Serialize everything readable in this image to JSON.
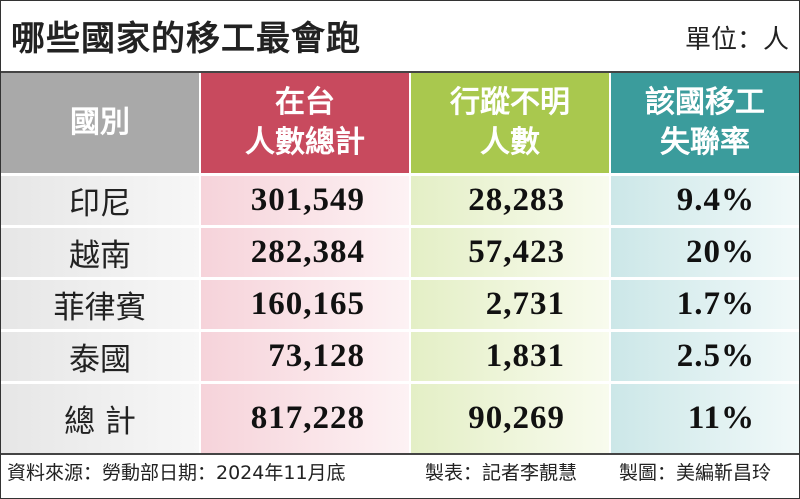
{
  "header": {
    "title": "哪些國家的移工最會跑",
    "unit": "單位：人"
  },
  "table": {
    "columns": [
      [
        "國別"
      ],
      [
        "在台",
        "人數總計"
      ],
      [
        "行蹤不明",
        "人數"
      ],
      [
        "該國移工",
        "失聯率"
      ]
    ],
    "rows": [
      [
        "印尼",
        "301,549",
        "28,283",
        "9.4%"
      ],
      [
        "越南",
        "282,384",
        "57,423",
        "20%"
      ],
      [
        "菲律賓",
        "160,165",
        "2,731",
        "1.7%"
      ],
      [
        "泰國",
        "73,128",
        "1,831",
        "2.5%"
      ],
      [
        "總 計",
        "817,228",
        "90,269",
        "11%"
      ]
    ]
  },
  "footer": {
    "source": "資料來源：勞動部日期：2024年11月底",
    "table_by": "製表：記者李靚慧",
    "graphic_by": "製圖：美編靳昌玲"
  }
}
